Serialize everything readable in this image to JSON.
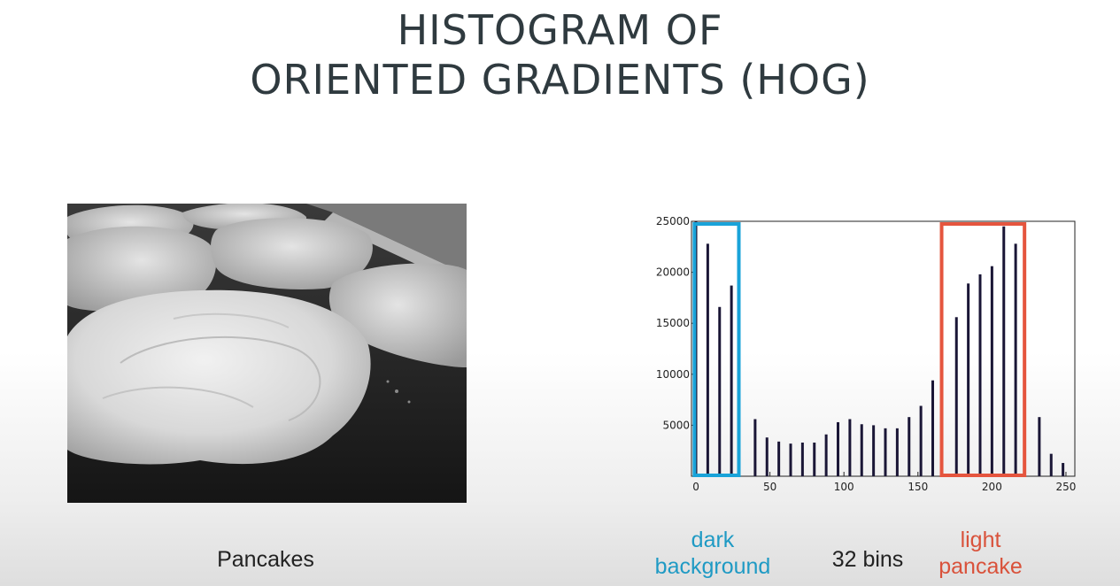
{
  "slide": {
    "title_line1": "HISTOGRAM OF",
    "title_line2": "ORIENTED GRADIENTS (HOG)",
    "photo_caption": "Pancakes",
    "bins_caption": "32 bins",
    "dark_label_line1": "dark",
    "dark_label_line2": "background",
    "light_label_line1": "light",
    "light_label_line2": "pancake"
  },
  "colors": {
    "title": "#2f3a3f",
    "dark_highlight": "#19a3d9",
    "light_highlight": "#e5553e",
    "bars": "#1a1636"
  },
  "chart_data": {
    "type": "bar",
    "x": [
      0,
      8,
      16,
      24,
      32,
      40,
      48,
      56,
      64,
      72,
      80,
      88,
      96,
      104,
      112,
      120,
      128,
      136,
      144,
      152,
      160,
      168,
      176,
      184,
      192,
      200,
      208,
      216,
      224,
      232,
      240,
      248
    ],
    "values": [
      25000,
      22800,
      16600,
      18700,
      0,
      5600,
      3800,
      3400,
      3200,
      3300,
      3300,
      4100,
      5300,
      5600,
      5100,
      5000,
      4700,
      4700,
      5800,
      6900,
      9400,
      0,
      15600,
      18900,
      19800,
      20600,
      24500,
      22800,
      0,
      5800,
      2200,
      1300
    ],
    "x_ticks": [
      "0",
      "50",
      "100",
      "150",
      "200",
      "250"
    ],
    "x_tick_values": [
      0,
      50,
      100,
      150,
      200,
      250
    ],
    "y_ticks": [
      "5000",
      "10000",
      "15000",
      "20000",
      "25000"
    ],
    "y_tick_values": [
      5000,
      10000,
      15000,
      20000,
      25000
    ],
    "xlim": [
      -3,
      256
    ],
    "ylim": [
      0,
      25000
    ],
    "grid": false,
    "highlights": [
      {
        "x_range": [
          -1,
          29
        ],
        "color": "#19a3d9"
      },
      {
        "x_range": [
          166,
          222
        ],
        "color": "#e5553e"
      }
    ]
  }
}
